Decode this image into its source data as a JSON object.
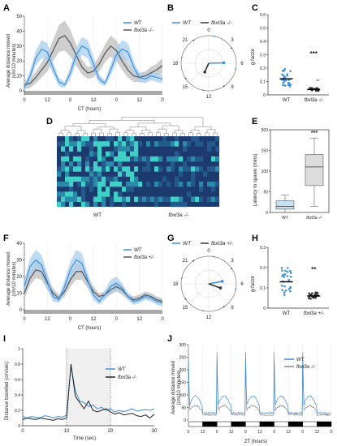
{
  "panel_labels": {
    "A": "A",
    "B": "B",
    "C": "C",
    "D": "D",
    "E": "E",
    "F": "F",
    "G": "G",
    "H": "H",
    "I": "I",
    "J": "J"
  },
  "colors": {
    "wt": "#3f8fd8",
    "wt_band": "#a9cff0",
    "mut": "#555555",
    "mut_band": "#bdbdbd",
    "heat_bg": "#1d3a6e",
    "heat_hi": "#40d0c8"
  },
  "chart_data": [
    {
      "id": "A",
      "type": "line",
      "ylabel": "Average distance moved (cm/10 minutes)",
      "xlabel": "CT (hours)",
      "x": [
        0,
        2,
        4,
        6,
        8,
        10,
        12,
        14,
        16,
        18,
        20,
        22,
        24,
        26,
        28,
        30,
        32,
        34,
        36,
        38,
        40,
        42,
        44,
        46,
        48
      ],
      "xticks": [
        "0",
        "12",
        "0",
        "12",
        "0",
        "12",
        "0"
      ],
      "ylim": [
        0,
        50
      ],
      "yticks": [
        0,
        10,
        20,
        30,
        40,
        50
      ],
      "series": [
        {
          "name": "WT",
          "values": [
            2,
            10,
            22,
            28,
            26,
            15,
            6,
            4,
            12,
            24,
            30,
            28,
            18,
            8,
            5,
            14,
            24,
            28,
            26,
            16,
            9,
            8,
            10,
            9,
            8
          ],
          "band": [
            2,
            4,
            5,
            6,
            6,
            4,
            3,
            2,
            4,
            5,
            6,
            6,
            5,
            3,
            2,
            4,
            5,
            6,
            6,
            4,
            3,
            3,
            3,
            3,
            3
          ]
        },
        {
          "name": "fbxl3a -/-",
          "values": [
            4,
            5,
            9,
            14,
            19,
            27,
            35,
            37,
            32,
            24,
            16,
            12,
            13,
            18,
            25,
            30,
            27,
            20,
            14,
            10,
            9,
            10,
            12,
            14,
            17
          ],
          "band": [
            3,
            3,
            4,
            5,
            6,
            7,
            9,
            10,
            9,
            7,
            5,
            4,
            4,
            5,
            6,
            7,
            7,
            6,
            5,
            4,
            3,
            3,
            4,
            4,
            5
          ]
        }
      ]
    },
    {
      "id": "B",
      "type": "polar",
      "ticks": [
        "0",
        "3",
        "6",
        "9",
        "12",
        "15",
        "18",
        "21"
      ],
      "legend": [
        "WT",
        "fbxl3a -/-"
      ],
      "series": [
        {
          "name": "WT",
          "angle_hours": 5.9,
          "length": 0.55
        },
        {
          "name": "fbxl3a -/-",
          "angle_hours": 13.6,
          "length": 0.35
        }
      ]
    },
    {
      "id": "C",
      "type": "scatter",
      "ylabel": "g-factor",
      "categories": [
        "WT",
        "fbxl3a -/-"
      ],
      "ylim": [
        0,
        0.6
      ],
      "yticks": [
        "0",
        "0.1",
        "0.2",
        "0.3",
        "0.4",
        "0.5",
        "0.6"
      ],
      "means": [
        0.12,
        0.04
      ],
      "signif": "***",
      "signif_small": "**"
    },
    {
      "id": "D",
      "type": "heatmap",
      "xlabels": [
        "WT",
        "fbxl3a -/-"
      ]
    },
    {
      "id": "E",
      "type": "box",
      "ylabel": "Latency to spawn (mins)",
      "categories": [
        "WT",
        "fbxl3a -/-"
      ],
      "ylim": [
        0,
        200
      ],
      "yticks": [
        0,
        50,
        100,
        150,
        200
      ],
      "signif": "***",
      "boxes": [
        {
          "min": 0,
          "q1": 8,
          "median": 15,
          "q3": 28,
          "max": 42
        },
        {
          "min": 15,
          "q1": 65,
          "median": 110,
          "q3": 140,
          "max": 180
        }
      ]
    },
    {
      "id": "F",
      "type": "line",
      "ylabel": "Average distance moved (cm/10 minutes)",
      "xlabel": "CT (hours)",
      "x": [
        0,
        2,
        4,
        6,
        8,
        10,
        12,
        14,
        16,
        18,
        20,
        22,
        24,
        26,
        28,
        30,
        32,
        34,
        36,
        38,
        40,
        42,
        44,
        46,
        48
      ],
      "xticks": [
        "0",
        "12",
        "0",
        "12",
        "0",
        "12",
        "0"
      ],
      "ylim": [
        0,
        40
      ],
      "yticks": [
        0,
        10,
        20,
        30,
        40
      ],
      "series": [
        {
          "name": "WT",
          "values": [
            14,
            26,
            30,
            27,
            17,
            8,
            6,
            14,
            24,
            30,
            28,
            18,
            9,
            5,
            9,
            14,
            16,
            13,
            8,
            5,
            6,
            8,
            7,
            5,
            4
          ],
          "band": [
            4,
            5,
            6,
            6,
            5,
            3,
            2,
            4,
            5,
            6,
            6,
            4,
            3,
            2,
            3,
            4,
            4,
            3,
            2,
            2,
            2,
            2,
            2,
            2,
            2
          ]
        },
        {
          "name": "fbxl3a +/-",
          "values": [
            10,
            19,
            24,
            23,
            16,
            10,
            7,
            11,
            18,
            23,
            23,
            17,
            11,
            8,
            9,
            12,
            14,
            12,
            8,
            6,
            7,
            9,
            8,
            6,
            5
          ],
          "band": [
            3,
            4,
            5,
            5,
            4,
            3,
            2,
            3,
            4,
            5,
            5,
            4,
            3,
            2,
            2,
            3,
            3,
            3,
            2,
            2,
            2,
            2,
            2,
            2,
            2
          ]
        }
      ]
    },
    {
      "id": "G",
      "type": "polar",
      "ticks": [
        "0",
        "3",
        "6",
        "9",
        "12",
        "15",
        "18",
        "21"
      ],
      "legend": [
        "WT",
        "fbxl3a +/-"
      ],
      "series": [
        {
          "name": "WT",
          "angle_hours": 5.3,
          "length": 0.5
        },
        {
          "name": "fbxl3a +/-",
          "angle_hours": 7.3,
          "length": 0.45
        }
      ]
    },
    {
      "id": "H",
      "type": "scatter",
      "ylabel": "g-factor",
      "categories": [
        "WT",
        "fbxl3a +/-"
      ],
      "ylim": [
        0,
        0.3
      ],
      "yticks": [
        "0",
        "0.1",
        "0.2",
        "0.3"
      ],
      "means": [
        0.13,
        0.06
      ],
      "signif": "**"
    },
    {
      "id": "I",
      "type": "line",
      "ylabel": "Distance travelled (cm/sec)",
      "xlabel": "Time (sec)",
      "x": [
        0,
        1,
        2,
        3,
        4,
        5,
        6,
        7,
        8,
        9,
        10,
        11,
        12,
        13,
        14,
        15,
        16,
        17,
        18,
        19,
        20,
        21,
        22,
        23,
        24,
        25,
        26,
        27,
        28,
        29,
        30
      ],
      "xticks": [
        "0",
        "10",
        "20",
        "30"
      ],
      "ylim": [
        0,
        1
      ],
      "yticks": [
        "0",
        "0.2",
        "0.4",
        "0.6",
        "0.8",
        "1"
      ],
      "series": [
        {
          "name": "WT",
          "values": [
            0.12,
            0.1,
            0.12,
            0.11,
            0.1,
            0.13,
            0.12,
            0.1,
            0.12,
            0.11,
            0.14,
            0.78,
            0.45,
            0.32,
            0.3,
            0.25,
            0.27,
            0.22,
            0.24,
            0.2,
            0.22,
            0.18,
            0.2,
            0.18,
            0.2,
            0.22,
            0.19,
            0.2,
            0.21,
            0.2,
            0.22
          ]
        },
        {
          "name": "fbxl3a -/-",
          "values": [
            0.08,
            0.1,
            0.09,
            0.08,
            0.1,
            0.09,
            0.08,
            0.07,
            0.09,
            0.08,
            0.1,
            0.8,
            0.38,
            0.3,
            0.22,
            0.32,
            0.2,
            0.18,
            0.2,
            0.22,
            0.18,
            0.15,
            0.17,
            0.14,
            0.15,
            0.16,
            0.13,
            0.12,
            0.14,
            0.1,
            0.15
          ]
        }
      ]
    },
    {
      "id": "J",
      "type": "line",
      "ylabel": "Average distance moved (cm/10 minutes)",
      "xlabel": "ZT (hours)",
      "xticks": [
        "0",
        "12",
        "0",
        "12",
        "0",
        "12",
        "0",
        "12",
        "0",
        "12",
        "0"
      ],
      "ylim": [
        0,
        300
      ],
      "yticks": [
        0,
        50,
        100,
        150,
        200,
        250,
        300
      ],
      "series": [
        {
          "name": "WT"
        },
        {
          "name": "fbxl3a -/-"
        }
      ]
    }
  ],
  "axis_labels": {
    "A_x": "CT (hours)",
    "A_y": "Average distance moved",
    "A_y2": "(cm/10 minutes)",
    "C_y": "g-factor",
    "E_y": "Latency to spawn (mins)",
    "F_x": "CT (hours)",
    "F_y": "Average distance moved",
    "F_y2": "(cm/10 minutes)",
    "H_y": "g-factor",
    "I_x": "Time (sec)",
    "I_y": "Distance travelled (cm/sec)",
    "J_x": "ZT (hours)",
    "J_y": "Average distance moved",
    "J_y2": "(cm/10 minutes)"
  }
}
